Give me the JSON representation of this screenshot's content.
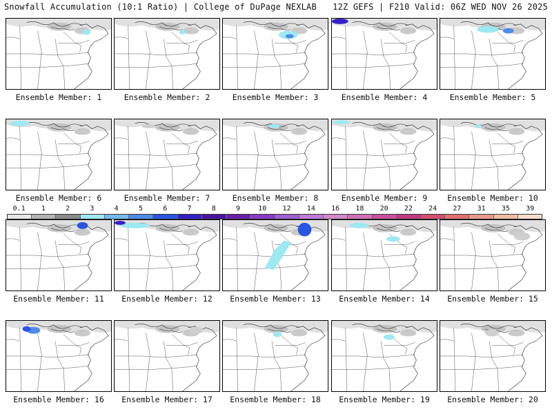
{
  "header": {
    "left": "Snowfall Accumulation (10:1 Ratio) | College of DuPage NEXLAB",
    "right": "12Z GEFS | F210 Valid: 06Z WED NOV 26 2025"
  },
  "caption_prefix": "Ensemble Member: ",
  "members": [
    "1",
    "2",
    "3",
    "4",
    "5",
    "6",
    "7",
    "8",
    "9",
    "10",
    "11",
    "12",
    "13",
    "14",
    "15",
    "16",
    "17",
    "18",
    "19",
    "20"
  ],
  "legend": {
    "labels": [
      "0.1",
      "1",
      "2",
      "3",
      "4",
      "5",
      "6",
      "7",
      "8",
      "9",
      "10",
      "12",
      "14",
      "16",
      "18",
      "20",
      "22",
      "24",
      "27",
      "31",
      "35",
      "39"
    ],
    "colors": [
      "#e6e6e6",
      "#b3b3b3",
      "#8c8c8c",
      "#9ee8f2",
      "#79b8f0",
      "#4f8ce8",
      "#2a55e0",
      "#3520c4",
      "#4a16a0",
      "#6a1fa8",
      "#8a3ac4",
      "#a060d0",
      "#c07ad8",
      "#d08ac8",
      "#d070b8",
      "#c8509a",
      "#c03a80",
      "#d05070",
      "#e07070",
      "#e89a8a",
      "#f0bca8",
      "#f8dcc8"
    ]
  }
}
